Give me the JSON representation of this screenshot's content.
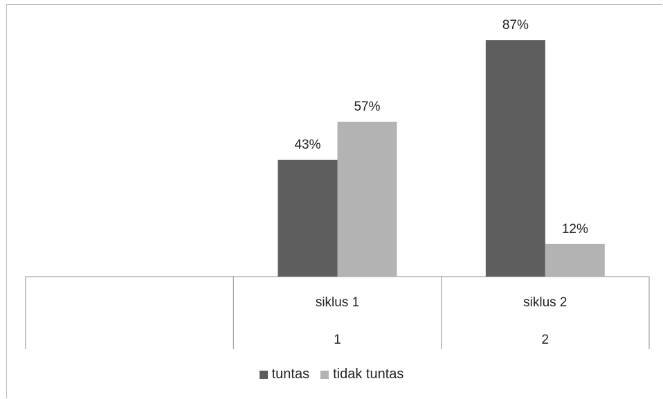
{
  "chart_data": {
    "type": "bar",
    "categories": [
      {
        "label": "",
        "sub": ""
      },
      {
        "label": "siklus 1",
        "sub": "1"
      },
      {
        "label": "siklus 2",
        "sub": "2"
      }
    ],
    "series": [
      {
        "name": "tuntas",
        "values": [
          null,
          43,
          87
        ],
        "labels": [
          "",
          "43%",
          "87%"
        ],
        "color": "#5e5e5e"
      },
      {
        "name": "tidak tuntas",
        "values": [
          null,
          57,
          12
        ],
        "labels": [
          "",
          "57%",
          "12%"
        ],
        "color": "#b3b3b3"
      }
    ],
    "ylim": [
      0,
      100
    ],
    "legend_position": "bottom",
    "grid": false
  }
}
